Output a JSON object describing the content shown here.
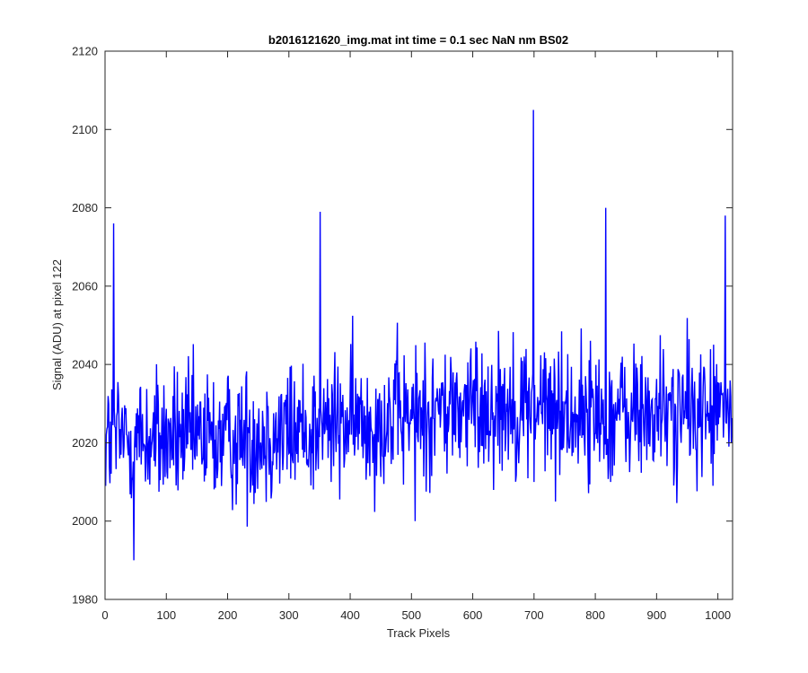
{
  "chart_data": {
    "type": "line",
    "title": "b2016121620_img.mat int time = 0.1 sec  NaN nm BS02",
    "xlabel": "Track Pixels",
    "ylabel": "Signal (ADU) at pixel 122",
    "xlim": [
      0,
      1024
    ],
    "ylim": [
      1980,
      2120
    ],
    "xticks": [
      0,
      100,
      200,
      300,
      400,
      500,
      600,
      700,
      800,
      900,
      1000
    ],
    "yticks": [
      1980,
      2000,
      2020,
      2040,
      2060,
      2080,
      2100,
      2120
    ],
    "grid": false,
    "legend": "none",
    "series_color": "#0000ff",
    "noise": {
      "x_start": 1,
      "x_end": 1024,
      "anchors_x": [
        0,
        200,
        400,
        500,
        650,
        800,
        1024
      ],
      "anchors_mean": [
        2021,
        2021,
        2025,
        2027,
        2030,
        2027,
        2028
      ],
      "amplitude": 9,
      "seed": 12345
    },
    "notable_points": [
      {
        "x": 14,
        "y": 2076
      },
      {
        "x": 47,
        "y": 1990
      },
      {
        "x": 351,
        "y": 2079
      },
      {
        "x": 506,
        "y": 2000
      },
      {
        "x": 699,
        "y": 2105
      },
      {
        "x": 700,
        "y": 2010
      },
      {
        "x": 817,
        "y": 2080
      },
      {
        "x": 1012,
        "y": 2078
      }
    ]
  }
}
